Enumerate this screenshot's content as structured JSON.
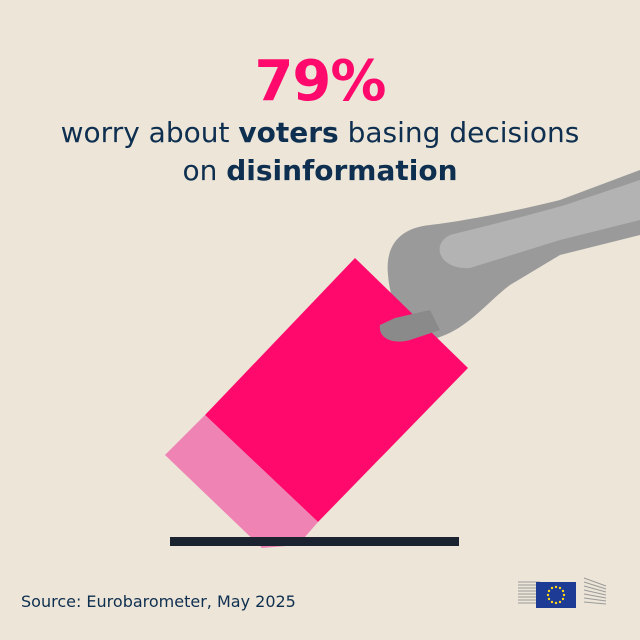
{
  "headline": {
    "percentage": "79%",
    "line1_pre": "worry about ",
    "line1_bold": "voters",
    "line1_post": " basing decisions",
    "line2_pre": "on ",
    "line2_bold": "disinformation"
  },
  "source": "Source: Eurobarometer, May 2025",
  "logo": {
    "name": "european-commission-logo",
    "flag_color": "#1d3a94",
    "star_color": "#ffd617"
  },
  "colors": {
    "accent": "#ff0a6c",
    "accent_light": "#ee83b4",
    "text": "#0e2f4f",
    "background": "#ece5d8"
  }
}
